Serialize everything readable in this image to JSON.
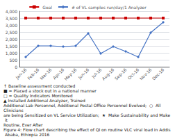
{
  "chart_data": {
    "type": "line",
    "categories": [
      "Jan-16",
      "Feb-16",
      "Mar-16",
      "Apr-16",
      "May-16",
      "Jun-16",
      "Jul-16",
      "Aug-16",
      "Sep-16",
      "Oct-16",
      "Nov-16",
      "Dec-16"
    ],
    "series": [
      {
        "name": "Goal",
        "color": "#cc0000",
        "marker": "square",
        "values": [
          3500,
          3500,
          3500,
          3500,
          3500,
          3500,
          3500,
          3500,
          3500,
          3500,
          3500,
          3500
        ]
      },
      {
        "name": "# of VL samples run/day/1 Analyzer",
        "color": "#4472c4",
        "marker": "diamond",
        "values": [
          700,
          1500,
          1500,
          1450,
          1500,
          2400,
          950,
          1450,
          1100,
          700,
          2450,
          3200
        ]
      }
    ],
    "ylim": [
      0,
      4000
    ],
    "yticks": [
      0,
      500,
      1000,
      1500,
      2000,
      2500,
      3000,
      3500,
      4000
    ],
    "grid": true,
    "legend": "top",
    "annotations": [
      "↑ Baseline assessment conducted",
      "■ = Placed a stock out in a national manner",
      "□ = Quality Indicators Monitored",
      "▲ Installed Additional Analyzer, Trained",
      "Additional Lab Personnel, Additional Postal Office Personnel Evolved;  ○  All Clinicians",
      "are being Sensitized on VL Service Utilization;  ★  Make Sustainability and Make it",
      "Routine, Ever After",
      "Figure 4: Flow chart describing the effect of QI on routine VLC viral load in Addis Ababa, Ethiopia 2016"
    ]
  }
}
